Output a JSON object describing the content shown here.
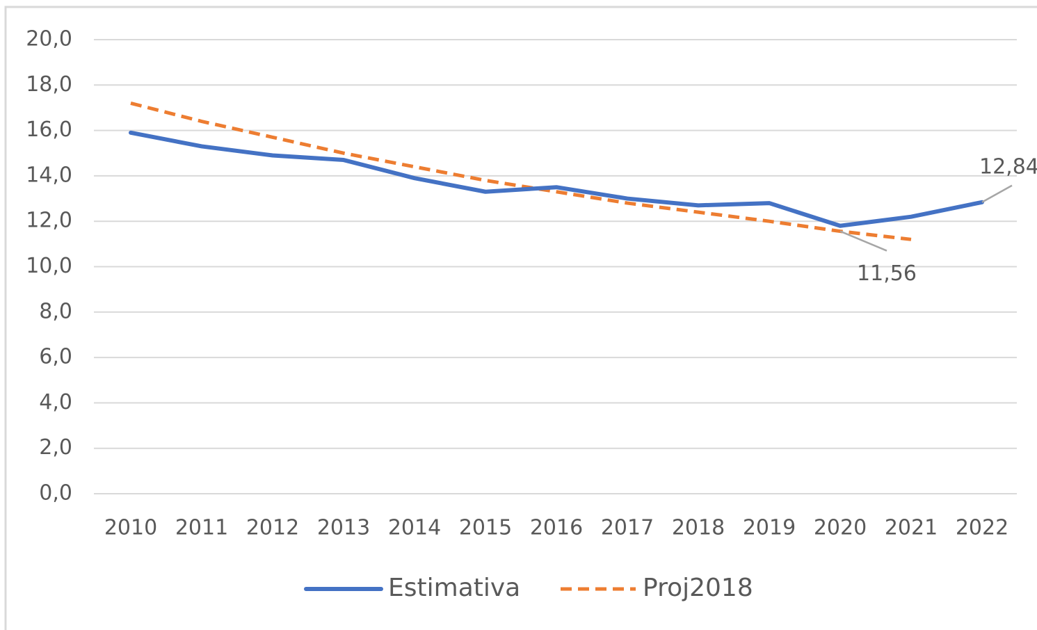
{
  "chart_data": {
    "type": "line",
    "categories": [
      "2010",
      "2011",
      "2012",
      "2013",
      "2014",
      "2015",
      "2016",
      "2017",
      "2018",
      "2019",
      "2020",
      "2021",
      "2022"
    ],
    "series": [
      {
        "name": "Estimativa",
        "color": "#4472c4",
        "dash": false,
        "values": [
          15.9,
          15.3,
          14.9,
          14.7,
          13.9,
          13.3,
          13.5,
          13.0,
          12.7,
          12.8,
          11.8,
          12.2,
          12.84
        ],
        "value_labels": [
          null,
          null,
          null,
          null,
          null,
          null,
          null,
          null,
          null,
          null,
          null,
          null,
          "12,84"
        ]
      },
      {
        "name": "Proj2018",
        "color": "#ed7d31",
        "dash": true,
        "values": [
          17.2,
          16.4,
          15.7,
          15.0,
          14.4,
          13.8,
          13.3,
          12.8,
          12.4,
          12.0,
          11.56,
          11.2,
          null
        ],
        "value_labels": [
          null,
          null,
          null,
          null,
          null,
          null,
          null,
          null,
          null,
          null,
          "11,56",
          null,
          null
        ]
      }
    ],
    "ylim": [
      0,
      20
    ],
    "yticks": [
      {
        "value": 0,
        "label": "0,0"
      },
      {
        "value": 2,
        "label": "2,0"
      },
      {
        "value": 4,
        "label": "4,0"
      },
      {
        "value": 6,
        "label": "6,0"
      },
      {
        "value": 8,
        "label": "8,0"
      },
      {
        "value": 10,
        "label": "10,0"
      },
      {
        "value": 12,
        "label": "12,0"
      },
      {
        "value": 14,
        "label": "14,0"
      },
      {
        "value": 16,
        "label": "16,0"
      },
      {
        "value": 18,
        "label": "18,0"
      },
      {
        "value": 20,
        "label": "20,0"
      }
    ],
    "grid": true,
    "legend": "bottom"
  }
}
